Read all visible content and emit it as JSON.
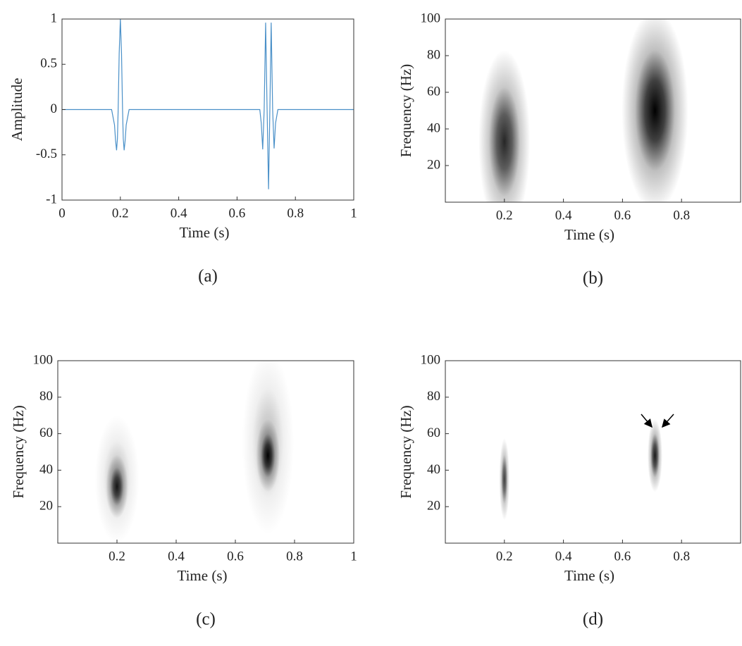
{
  "chart_data": [
    {
      "type": "line",
      "caption": "(a)",
      "xlabel": "Time (s)",
      "ylabel": "Amplitude",
      "color": "#4a90c8",
      "x": [
        0,
        0.17,
        0.18,
        0.1835,
        0.187,
        0.19,
        0.1925,
        0.196,
        0.2,
        0.204,
        0.2075,
        0.21,
        0.213,
        0.2165,
        0.22,
        0.23,
        0.678,
        0.683,
        0.688,
        0.693,
        0.698,
        0.703,
        0.708,
        0.7125,
        0.717,
        0.722,
        0.727,
        0.732,
        0.74,
        1
      ],
      "values": [
        0,
        0,
        -0.17,
        -0.34,
        -0.45,
        -0.32,
        0,
        0.62,
        1,
        0.62,
        0,
        -0.32,
        -0.45,
        -0.34,
        -0.17,
        0,
        0,
        -0.15,
        -0.44,
        0,
        0.96,
        0,
        -0.88,
        0,
        0.96,
        0,
        -0.43,
        -0.15,
        0,
        0
      ],
      "xlim": [
        0,
        1
      ],
      "xticks": [
        0,
        0.2,
        0.4,
        0.6,
        0.8,
        1
      ],
      "ylim": [
        -1,
        1
      ],
      "yticks": [
        -1,
        -0.5,
        0,
        0.5,
        1
      ]
    },
    {
      "type": "heatmap",
      "caption": "(b)",
      "xlabel": "Time (s)",
      "ylabel": "Frequency (Hz)",
      "blobs": [
        {
          "x": 0.2,
          "y": 33,
          "sx": 0.035,
          "sy": 20,
          "weight": 0.85
        },
        {
          "x": 0.71,
          "y": 50,
          "sx": 0.045,
          "sy": 22,
          "weight": 1
        }
      ],
      "xlim": [
        0,
        1
      ],
      "xticks": [
        0.2,
        0.4,
        0.6,
        0.8
      ],
      "ylim": [
        0,
        100
      ],
      "yticks": [
        20,
        40,
        60,
        80,
        100
      ]
    },
    {
      "type": "heatmap",
      "caption": "(c)",
      "xlabel": "Time (s)",
      "ylabel": "Frequency (Hz)",
      "blobs": [
        {
          "x": 0.2,
          "y": 35,
          "sx": 0.03,
          "sy": 14,
          "weight": 0.25
        },
        {
          "x": 0.2,
          "y": 31,
          "sx": 0.015,
          "sy": 7,
          "weight": 0.9
        },
        {
          "x": 0.71,
          "y": 55,
          "sx": 0.035,
          "sy": 20,
          "weight": 0.25
        },
        {
          "x": 0.71,
          "y": 48,
          "sx": 0.016,
          "sy": 8,
          "weight": 1
        }
      ],
      "xlim": [
        0,
        1
      ],
      "xticks": [
        0.2,
        0.4,
        0.6,
        0.8,
        1
      ],
      "ylim": [
        0,
        100
      ],
      "yticks": [
        20,
        40,
        60,
        80,
        100
      ]
    },
    {
      "type": "heatmap",
      "caption": "(d)",
      "xlabel": "Time (s)",
      "ylabel": "Frequency (Hz)",
      "blobs": [
        {
          "x": 0.2,
          "y": 35,
          "sx": 0.007,
          "sy": 9,
          "weight": 0.75
        },
        {
          "x": 0.71,
          "y": 48,
          "sx": 0.01,
          "sy": 8,
          "weight": 0.9
        }
      ],
      "xlim": [
        0,
        1
      ],
      "xticks": [
        0.2,
        0.4,
        0.6,
        0.8
      ],
      "ylim": [
        0,
        100
      ],
      "yticks": [
        20,
        40,
        60,
        80,
        100
      ]
    }
  ]
}
